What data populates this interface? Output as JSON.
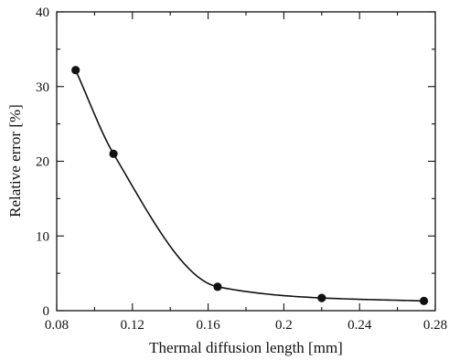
{
  "chart_data": {
    "type": "scatter",
    "title": "",
    "xlabel": "Thermal diffusion length [mm]",
    "ylabel": "Relative error [%]",
    "xlim": [
      0.08,
      0.28
    ],
    "ylim": [
      0,
      40
    ],
    "x_ticks": [
      0.08,
      0.12,
      0.16,
      0.2,
      0.24,
      0.28
    ],
    "x_tick_labels": [
      "0.08",
      "0.12",
      "0.16",
      "0.2",
      "0.24",
      "0.28"
    ],
    "y_ticks": [
      0,
      10,
      20,
      30,
      40
    ],
    "y_tick_labels": [
      "0",
      "10",
      "20",
      "30",
      "40"
    ],
    "grid": false,
    "legend": "none",
    "line_style": "smooth curve through points",
    "marker": "filled circle",
    "color": "#111111",
    "series": [
      {
        "x": [
          0.09,
          0.11,
          0.165,
          0.22,
          0.274
        ],
        "y": [
          32.2,
          21.0,
          3.2,
          1.7,
          1.3
        ]
      }
    ]
  }
}
